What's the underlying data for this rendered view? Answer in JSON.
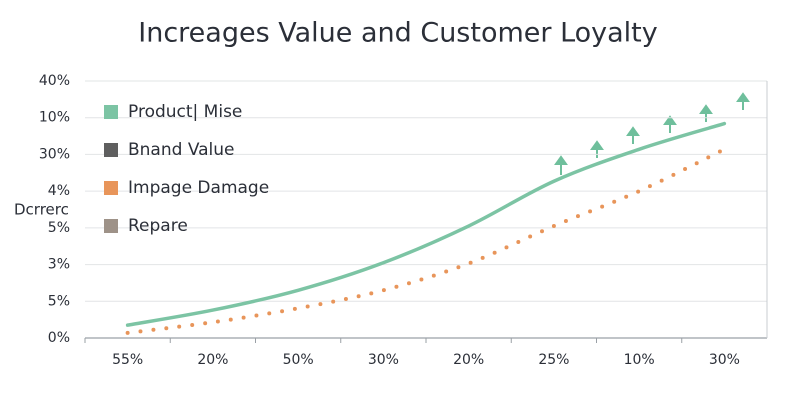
{
  "chart_data": {
    "type": "line",
    "title": "Increages Value and Customer Loyalty",
    "y_label": "Dcrrerc",
    "categories": [
      "55%",
      "20%",
      "50%",
      "30%",
      "20%",
      "25%",
      "10%",
      "30%"
    ],
    "series": [
      {
        "name": "Product| Mise",
        "color": "#7cc4a4",
        "style": "solid",
        "values": [
          0.35,
          0.76,
          1.3,
          2.05,
          3.05,
          4.27,
          5.14,
          5.84
        ]
      },
      {
        "name": "Bnand Value",
        "color": "#5f5f5f",
        "style": "solid",
        "values": [
          null,
          null,
          null,
          null,
          null,
          null,
          null,
          null
        ]
      },
      {
        "name": "Impage Damage",
        "color": "#e8955a",
        "style": "dotted",
        "values": [
          0.14,
          0.43,
          0.81,
          1.3,
          2.03,
          3.05,
          4.0,
          5.14
        ]
      },
      {
        "name": "Repare",
        "color": "#9e9288",
        "style": "solid",
        "values": [
          null,
          null,
          null,
          null,
          null,
          null,
          null,
          null
        ]
      }
    ],
    "ylim": [
      0,
      7
    ],
    "yticks": [
      {
        "value": 0,
        "label": "0%"
      },
      {
        "value": 1,
        "label": "5%"
      },
      {
        "value": 2,
        "label": "3%"
      },
      {
        "value": 3,
        "label": "5%"
      },
      {
        "value": 4,
        "label": "4%"
      },
      {
        "value": 5,
        "label": "30%"
      },
      {
        "value": 6,
        "label": "10%"
      },
      {
        "value": 7,
        "label": "40%"
      }
    ],
    "grid": true,
    "legend": "upper left"
  }
}
